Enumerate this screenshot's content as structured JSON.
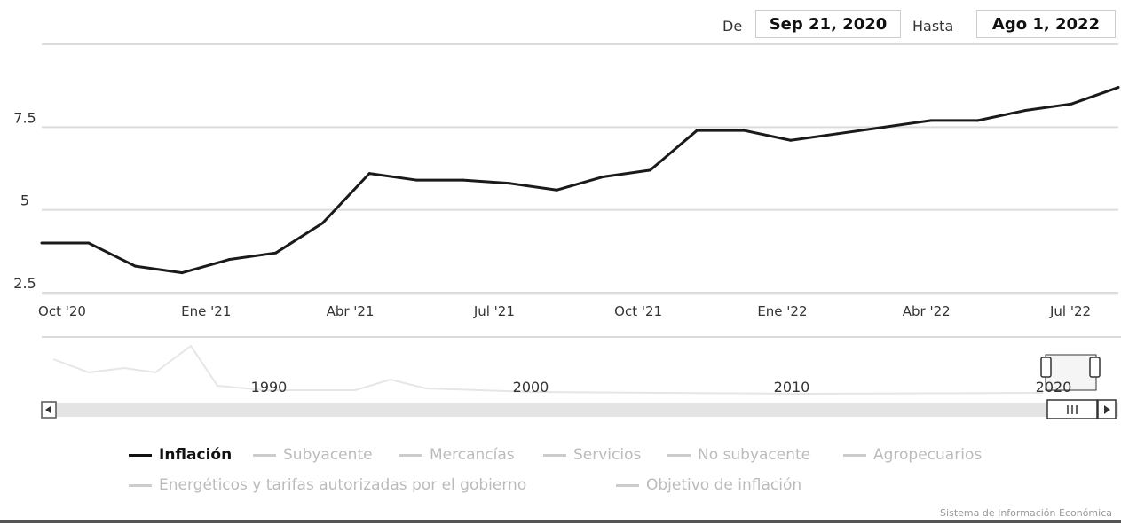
{
  "range_selector": {
    "from_label": "De",
    "from_value": "Sep 21, 2020",
    "to_label": "Hasta",
    "to_value": "Ago 1, 2022"
  },
  "navigator": {
    "labels": [
      "1990",
      "2000",
      "2010",
      "2020"
    ]
  },
  "legend": {
    "items": [
      {
        "label": "Inflación",
        "active": true
      },
      {
        "label": "Subyacente",
        "active": false
      },
      {
        "label": "Mercancías",
        "active": false
      },
      {
        "label": "Servicios",
        "active": false
      },
      {
        "label": "No subyacente",
        "active": false
      },
      {
        "label": "Agropecuarios",
        "active": false
      },
      {
        "label": "Energéticos y tarifas autorizadas por el gobierno",
        "active": false
      },
      {
        "label": "Objetivo de inflación",
        "active": false
      }
    ]
  },
  "credits": "Sistema de Información Económica",
  "chart_data": {
    "type": "line",
    "title": "",
    "xlabel": "",
    "ylabel": "",
    "x_ticks": [
      "Oct '20",
      "Ene '21",
      "Abr '21",
      "Jul '21",
      "Oct '21",
      "Ene '22",
      "Abr '22",
      "Jul '22"
    ],
    "y_ticks": [
      "2.5",
      "5",
      "7.5"
    ],
    "ylim": [
      2.5,
      10
    ],
    "grid": true,
    "series": [
      {
        "name": "Inflación",
        "color": "#1a1a1a",
        "x": [
          "Sep 21, 2020",
          "Oct '20",
          "Nov '20",
          "Dic '20",
          "Ene '21",
          "Feb '21",
          "Mar '21",
          "Abr '21",
          "May '21",
          "Jun '21",
          "Jul '21",
          "Ago '21",
          "Sep '21",
          "Oct '21",
          "Nov '21",
          "Dic '21",
          "Ene '22",
          "Feb '22",
          "Mar '22",
          "Abr '22",
          "May '22",
          "Jun '22",
          "Jul '22",
          "Ago 1, 2022"
        ],
        "values": [
          4.0,
          4.0,
          3.3,
          3.1,
          3.5,
          3.7,
          4.6,
          6.1,
          5.9,
          5.9,
          5.8,
          5.6,
          6.0,
          6.2,
          7.4,
          7.4,
          7.1,
          7.3,
          7.5,
          7.7,
          7.7,
          8.0,
          8.2,
          8.7
        ]
      }
    ]
  }
}
